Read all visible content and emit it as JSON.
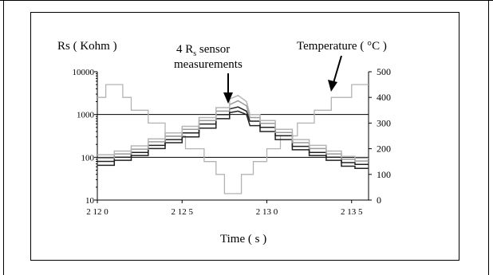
{
  "chart_data": {
    "type": "line",
    "left_axis_title": "Rs ( Kohm )",
    "right_axis_title": "Temperature ( °C )",
    "xlabel": "Time ( s )",
    "annotation_sensors_line1": "4 R",
    "annotation_sensors_sub": "s",
    "annotation_sensors_line1_end": " sensor",
    "annotation_sensors_line2": "measurements",
    "left_scale": "log",
    "left_ylim": [
      10,
      10000
    ],
    "left_ticks": [
      "10",
      "100",
      "1000",
      "10000"
    ],
    "left_tick_values": [
      10,
      100,
      1000,
      10000
    ],
    "right_ylim": [
      0,
      500
    ],
    "right_ticks": [
      "0",
      "100",
      "200",
      "300",
      "400",
      "500"
    ],
    "right_tick_values": [
      0,
      100,
      200,
      300,
      400,
      500
    ],
    "xlim": [
      2120,
      2136
    ],
    "x_ticks": [
      "2 12 0",
      "2 12 5",
      "2 13 0",
      "2 13 5"
    ],
    "x_tick_values": [
      2120,
      2125,
      2130,
      2135
    ],
    "horizontal_reference_lines": [
      100,
      1000
    ],
    "temperature_series": {
      "axis": "right",
      "color": "#b3b3b3",
      "points": [
        [
          2120,
          400
        ],
        [
          2120.5,
          400
        ],
        [
          2120.5,
          450
        ],
        [
          2121.5,
          450
        ],
        [
          2121.5,
          400
        ],
        [
          2122,
          400
        ],
        [
          2122,
          350
        ],
        [
          2123,
          350
        ],
        [
          2123,
          300
        ],
        [
          2124,
          300
        ],
        [
          2124,
          250
        ],
        [
          2125.2,
          250
        ],
        [
          2125.2,
          200
        ],
        [
          2126.3,
          200
        ],
        [
          2126.3,
          150
        ],
        [
          2127,
          150
        ],
        [
          2127,
          100
        ],
        [
          2127.5,
          100
        ],
        [
          2127.5,
          25
        ],
        [
          2128.5,
          25
        ],
        [
          2128.5,
          100
        ],
        [
          2129.2,
          100
        ],
        [
          2129.2,
          150
        ],
        [
          2130,
          150
        ],
        [
          2130,
          200
        ],
        [
          2130.8,
          200
        ],
        [
          2130.8,
          250
        ],
        [
          2131.8,
          250
        ],
        [
          2131.8,
          300
        ],
        [
          2132.8,
          300
        ],
        [
          2132.8,
          350
        ],
        [
          2133.8,
          350
        ],
        [
          2133.8,
          400
        ],
        [
          2135,
          400
        ],
        [
          2135,
          450
        ],
        [
          2136,
          450
        ]
      ]
    },
    "rs_series": [
      {
        "color": "#222222",
        "points": [
          [
            2120,
            65
          ],
          [
            2121,
            65
          ],
          [
            2121,
            85
          ],
          [
            2122,
            85
          ],
          [
            2122,
            110
          ],
          [
            2123,
            110
          ],
          [
            2123,
            160
          ],
          [
            2124,
            160
          ],
          [
            2124,
            220
          ],
          [
            2125,
            220
          ],
          [
            2125,
            300
          ],
          [
            2126,
            300
          ],
          [
            2126,
            480
          ],
          [
            2127,
            480
          ],
          [
            2127,
            800
          ],
          [
            2127.8,
            800
          ],
          [
            2127.8,
            1100
          ],
          [
            2128.3,
            1200
          ],
          [
            2128.8,
            1000
          ],
          [
            2129,
            550
          ],
          [
            2129.6,
            550
          ],
          [
            2129.6,
            400
          ],
          [
            2130.5,
            400
          ],
          [
            2130.5,
            260
          ],
          [
            2131.5,
            260
          ],
          [
            2131.5,
            150
          ],
          [
            2132.5,
            150
          ],
          [
            2132.5,
            110
          ],
          [
            2133.5,
            110
          ],
          [
            2133.5,
            85
          ],
          [
            2134.4,
            85
          ],
          [
            2134.4,
            62
          ],
          [
            2135.2,
            62
          ],
          [
            2135.2,
            55
          ],
          [
            2136,
            55
          ]
        ]
      },
      {
        "color": "#222222",
        "points": [
          [
            2120,
            80
          ],
          [
            2121,
            80
          ],
          [
            2121,
            100
          ],
          [
            2122,
            100
          ],
          [
            2122,
            130
          ],
          [
            2123,
            130
          ],
          [
            2123,
            190
          ],
          [
            2124,
            190
          ],
          [
            2124,
            260
          ],
          [
            2125,
            260
          ],
          [
            2125,
            370
          ],
          [
            2126,
            370
          ],
          [
            2126,
            600
          ],
          [
            2127,
            600
          ],
          [
            2127,
            1000
          ],
          [
            2127.8,
            1000
          ],
          [
            2127.8,
            1350
          ],
          [
            2128.3,
            1500
          ],
          [
            2128.8,
            1200
          ],
          [
            2129,
            700
          ],
          [
            2129.6,
            700
          ],
          [
            2129.6,
            500
          ],
          [
            2130.5,
            500
          ],
          [
            2130.5,
            320
          ],
          [
            2131.5,
            320
          ],
          [
            2131.5,
            180
          ],
          [
            2132.5,
            180
          ],
          [
            2132.5,
            130
          ],
          [
            2133.5,
            130
          ],
          [
            2133.5,
            100
          ],
          [
            2134.4,
            100
          ],
          [
            2134.4,
            75
          ],
          [
            2135.2,
            75
          ],
          [
            2135.2,
            68
          ],
          [
            2136,
            68
          ]
        ]
      },
      {
        "color": "#9a9a9a",
        "points": [
          [
            2120,
            95
          ],
          [
            2121,
            95
          ],
          [
            2121,
            120
          ],
          [
            2122,
            120
          ],
          [
            2122,
            155
          ],
          [
            2123,
            155
          ],
          [
            2123,
            230
          ],
          [
            2124,
            230
          ],
          [
            2124,
            310
          ],
          [
            2125,
            310
          ],
          [
            2125,
            450
          ],
          [
            2126,
            450
          ],
          [
            2126,
            720
          ],
          [
            2127,
            720
          ],
          [
            2127,
            1200
          ],
          [
            2127.8,
            1200
          ],
          [
            2127.8,
            1700
          ],
          [
            2128.3,
            2100
          ],
          [
            2128.8,
            1600
          ],
          [
            2129,
            850
          ],
          [
            2129.6,
            850
          ],
          [
            2129.6,
            620
          ],
          [
            2130.5,
            620
          ],
          [
            2130.5,
            380
          ],
          [
            2131.5,
            380
          ],
          [
            2131.5,
            220
          ],
          [
            2132.5,
            220
          ],
          [
            2132.5,
            160
          ],
          [
            2133.5,
            160
          ],
          [
            2133.5,
            120
          ],
          [
            2134.4,
            120
          ],
          [
            2134.4,
            90
          ],
          [
            2135.2,
            90
          ],
          [
            2135.2,
            82
          ],
          [
            2136,
            82
          ]
        ]
      },
      {
        "color": "#b5b5b5",
        "points": [
          [
            2120,
            115
          ],
          [
            2121,
            115
          ],
          [
            2121,
            140
          ],
          [
            2122,
            140
          ],
          [
            2122,
            185
          ],
          [
            2123,
            185
          ],
          [
            2123,
            270
          ],
          [
            2124,
            270
          ],
          [
            2124,
            370
          ],
          [
            2125,
            370
          ],
          [
            2125,
            530
          ],
          [
            2126,
            530
          ],
          [
            2126,
            850
          ],
          [
            2127,
            850
          ],
          [
            2127,
            1450
          ],
          [
            2127.8,
            1450
          ],
          [
            2127.8,
            2300
          ],
          [
            2128.3,
            2800
          ],
          [
            2128.8,
            2000
          ],
          [
            2129,
            1000
          ],
          [
            2129.6,
            1000
          ],
          [
            2129.6,
            720
          ],
          [
            2130.5,
            720
          ],
          [
            2130.5,
            450
          ],
          [
            2131.5,
            450
          ],
          [
            2131.5,
            260
          ],
          [
            2132.5,
            260
          ],
          [
            2132.5,
            190
          ],
          [
            2133.5,
            190
          ],
          [
            2133.5,
            140
          ],
          [
            2134.4,
            140
          ],
          [
            2134.4,
            105
          ],
          [
            2135.2,
            105
          ],
          [
            2135.2,
            95
          ],
          [
            2136,
            95
          ]
        ]
      }
    ]
  }
}
